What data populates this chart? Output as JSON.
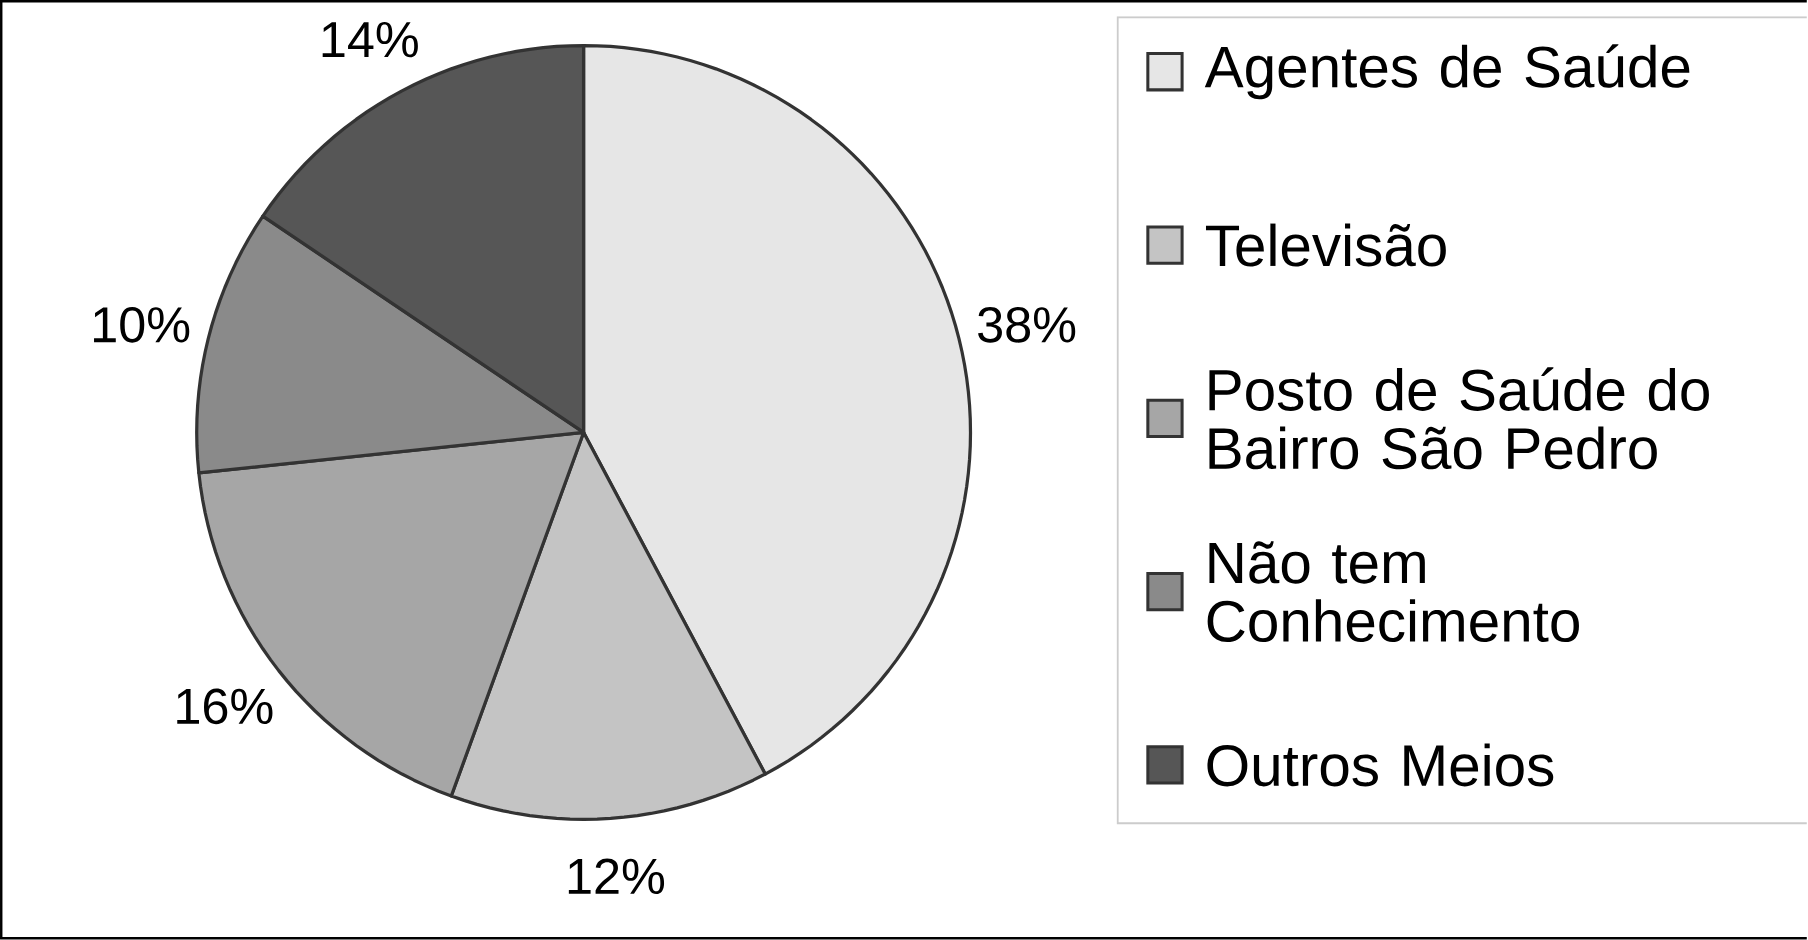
{
  "chart_data": {
    "type": "pie",
    "categories": [
      "Agentes de Saúde",
      "Televisão",
      "Posto de Saúde do Bairro São Pedro",
      "Não tem Conhecimento",
      "Outros Meios"
    ],
    "values": [
      38,
      12,
      16,
      10,
      14
    ],
    "value_labels": [
      "38%",
      "12%",
      "16%",
      "10%",
      "14%"
    ],
    "colors": [
      "#e6e6e6",
      "#c4c4c4",
      "#a6a6a6",
      "#8a8a8a",
      "#565656"
    ],
    "legend": "right"
  }
}
